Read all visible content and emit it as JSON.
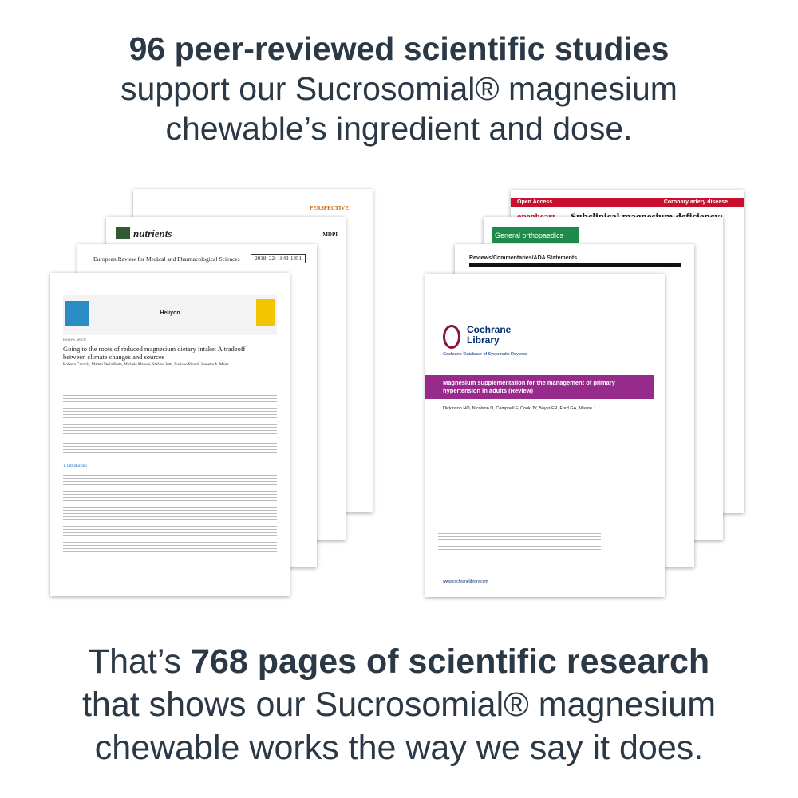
{
  "header": {
    "title": "96 peer-reviewed scientific studies",
    "lines": [
      "support our Sucrosomial® magnesium",
      "chewable’s ingredient and dose."
    ]
  },
  "papers_left": {
    "perspective": {
      "label": "PERSPECTIVE"
    },
    "nutrients": {
      "journal": "nutrients",
      "publisher": "MDPI"
    },
    "eurrev": {
      "journal": "European Review for Medical and Pharmacological Sciences",
      "issue": "2018; 22: 1843-1851"
    },
    "heliyon": {
      "journal": "Heliyon",
      "type": "Review article",
      "title": "Going to the roots of reduced magnesium dietary intake: A tradeoff between climate changes and sources",
      "authors": "Roberta Cazzola, Matteo Della Porta, Michele Manoni, Stefano Iotti, Luciano Pinotti, Jeanette A. Maier",
      "section": "1. Introduction"
    }
  },
  "papers_right": {
    "openheart": {
      "access": "Open Access",
      "topic": "Coronary artery disease",
      "journal": "openheart",
      "title": "Subclinical magnesium deficiency:"
    },
    "ortho": {
      "label": "General orthopaedics"
    },
    "ada": {
      "label": "Reviews/Commentaries/ADA Statements"
    },
    "cochrane": {
      "brand": "Cochrane Library",
      "db": "Cochrane Database of Systematic Reviews",
      "title": "Magnesium supplementation for the management of primary hypertension in adults (Review)",
      "authors": "Dickinson HO, Nicolson D, Campbell F, Cook JV, Beyer FR, Ford GA, Mason J",
      "url": "www.cochranelibrary.com"
    }
  },
  "footer": {
    "lead": "That’s",
    "highlight": "768 pages of scientific research",
    "lines": [
      "that shows our Sucrosomial® magnesium",
      "chewable works the way we say it does."
    ]
  }
}
